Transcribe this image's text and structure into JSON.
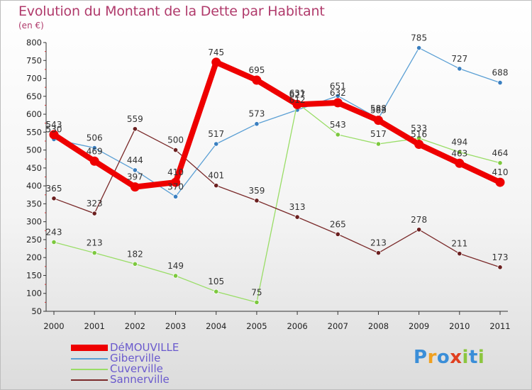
{
  "header": {
    "title": "Evolution du Montant de la Dette par Habitant",
    "unit": "(en €)"
  },
  "logo": {
    "text": "Proxiti",
    "letters": [
      {
        "ch": "P",
        "color": "#3a8ed8"
      },
      {
        "ch": "r",
        "color": "#f0a020"
      },
      {
        "ch": "o",
        "color": "#3a8ed8"
      },
      {
        "ch": "x",
        "color": "#e04020"
      },
      {
        "ch": "i",
        "color": "#8cc63f"
      },
      {
        "ch": "t",
        "color": "#3a8ed8"
      },
      {
        "ch": "i",
        "color": "#8cc63f"
      }
    ]
  },
  "chart_data": {
    "type": "line",
    "title": "Evolution du Montant de la Dette par Habitant",
    "ylabel": "(en €)",
    "xlabel": "",
    "x": [
      "2000",
      "2001",
      "2002",
      "2003",
      "2004",
      "2005",
      "2006",
      "2007",
      "2008",
      "2009",
      "2010",
      "2011"
    ],
    "ylim": [
      50,
      800
    ],
    "yticks": [
      50,
      100,
      150,
      200,
      250,
      300,
      350,
      400,
      450,
      500,
      550,
      600,
      650,
      700,
      750,
      800
    ],
    "grid": false,
    "legend": "bottom-left",
    "series": [
      {
        "name": "Giberville",
        "color": "#5a9fd4",
        "marker": "#3a7fc0",
        "values": [
          530,
          506,
          444,
          370,
          517,
          573,
          612,
          651,
          588,
          785,
          727,
          688
        ],
        "labels": [
          "530",
          "506",
          "444",
          "370",
          "517",
          "573",
          "612",
          "651",
          "588",
          "785",
          "727",
          "688"
        ]
      },
      {
        "name": "Cuverville",
        "color": "#99dd66",
        "marker": "#7cc83e",
        "values": [
          243,
          213,
          182,
          149,
          105,
          75,
          631,
          543,
          517,
          533,
          494,
          464
        ],
        "labels": [
          "243",
          "213",
          "182",
          "149",
          "105",
          "75",
          "631",
          "543",
          "517",
          "533",
          "494",
          "464"
        ]
      },
      {
        "name": "Sannerville",
        "color": "#7a2a2a",
        "marker": "#6b1f1f",
        "values": [
          365,
          323,
          559,
          500,
          401,
          359,
          313,
          265,
          213,
          278,
          211,
          173
        ],
        "labels": [
          "365",
          "323",
          "559",
          "500",
          "401",
          "359",
          "313",
          "265",
          "213",
          "278",
          "211",
          "173"
        ]
      },
      {
        "name": "DéMOUVILLE",
        "color": "#ee0000",
        "marker": "#ee0000",
        "values": [
          543,
          469,
          397,
          410,
          745,
          695,
          627,
          632,
          583,
          516,
          463,
          410
        ],
        "labels": [
          "543",
          "469",
          "397",
          "410",
          "745",
          "695",
          "627",
          "632",
          "583",
          "516",
          "463",
          "410"
        ]
      }
    ]
  },
  "legend": {
    "items": [
      {
        "label": "DéMOUVILLE",
        "color": "#ee0000",
        "thick": true
      },
      {
        "label": "Giberville",
        "color": "#5a9fd4",
        "thick": false
      },
      {
        "label": "Cuverville",
        "color": "#99dd66",
        "thick": false
      },
      {
        "label": "Sannerville",
        "color": "#7a2a2a",
        "thick": false
      }
    ]
  }
}
